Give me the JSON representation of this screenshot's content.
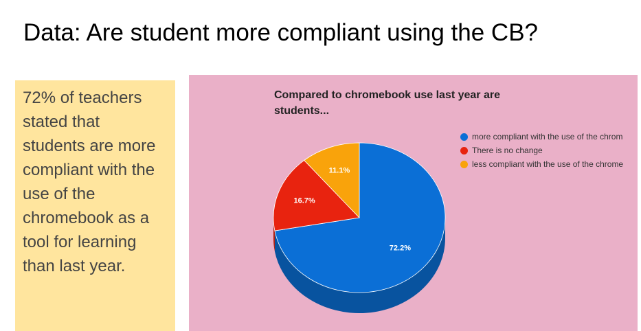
{
  "slide": {
    "title": "Data:  Are student more compliant using the CB?"
  },
  "note": {
    "lines": [
      "72% of teachers",
      "stated that",
      "students are more",
      "compliant with the",
      "use of the",
      "chromebook as a",
      "tool for learning",
      "than last year."
    ]
  },
  "chart_data": {
    "type": "pie",
    "title": "Compared to chromebook use last year are students...",
    "title_lines": [
      "Compared to chromebook use last year are",
      "students..."
    ],
    "categories": [
      "more compliant with the use of the chromebook",
      "There is no change",
      "less compliant with the use of the chromebook"
    ],
    "legend_text": [
      "more compliant with the use of the chrom",
      "There is no change",
      "less compliant with the use of the chrome"
    ],
    "values": [
      72.2,
      16.7,
      11.1
    ],
    "data_labels": [
      "72.2%",
      "16.7%",
      "11.1%"
    ],
    "colors": [
      "#0b6fd6",
      "#e8230f",
      "#f9a30b"
    ],
    "side_colors": [
      "#08539f",
      "#ad1a0b",
      "#b77808"
    ],
    "legend_position": "right",
    "style": "3d"
  }
}
